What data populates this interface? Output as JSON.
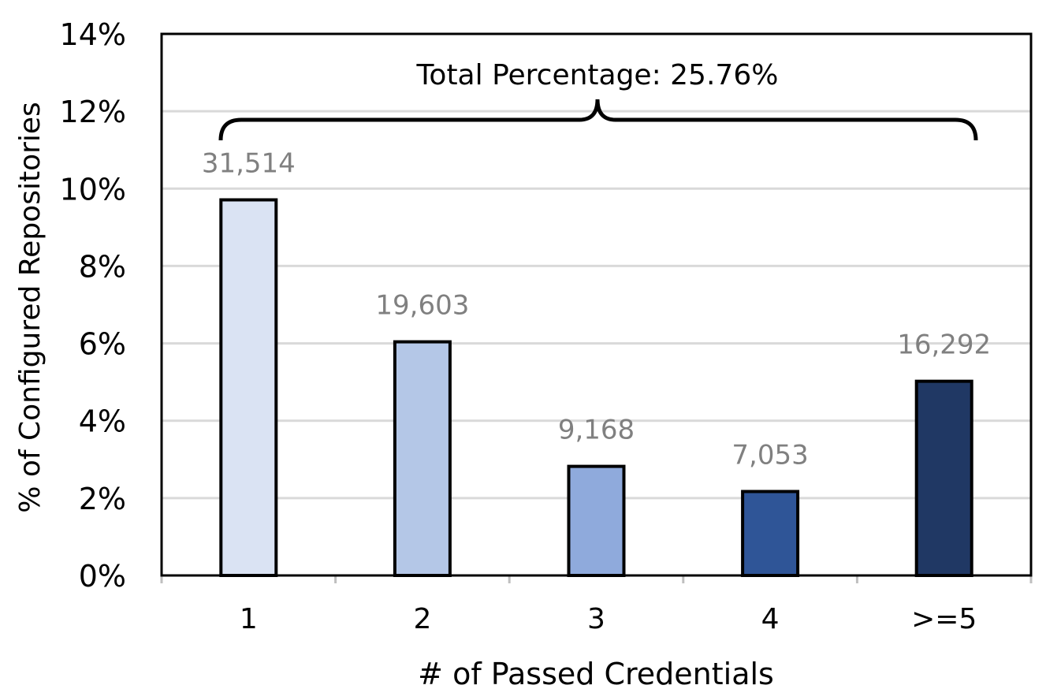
{
  "chart_data": {
    "type": "bar",
    "title": "",
    "xlabel": "# of Passed Credentials",
    "ylabel": "% of Configured Repositories",
    "categories": [
      "1",
      "2",
      "3",
      "4",
      ">=5"
    ],
    "values": [
      9.71,
      6.04,
      2.82,
      2.17,
      5.02
    ],
    "data_labels": [
      "31,514",
      "19,603",
      "9,168",
      "7,053",
      "16,292"
    ],
    "ylim": [
      0,
      14
    ],
    "yticks": [
      0,
      2,
      4,
      6,
      8,
      10,
      12,
      14
    ],
    "ytick_labels": [
      "0%",
      "2%",
      "4%",
      "6%",
      "8%",
      "10%",
      "12%",
      "14%"
    ],
    "grid": true,
    "bar_colors": [
      "#dae3f3",
      "#b4c7e7",
      "#8faadc",
      "#2f5597",
      "#203864"
    ],
    "data_label_color": "#808080",
    "annotation": "Total Percentage: 25.76%"
  }
}
